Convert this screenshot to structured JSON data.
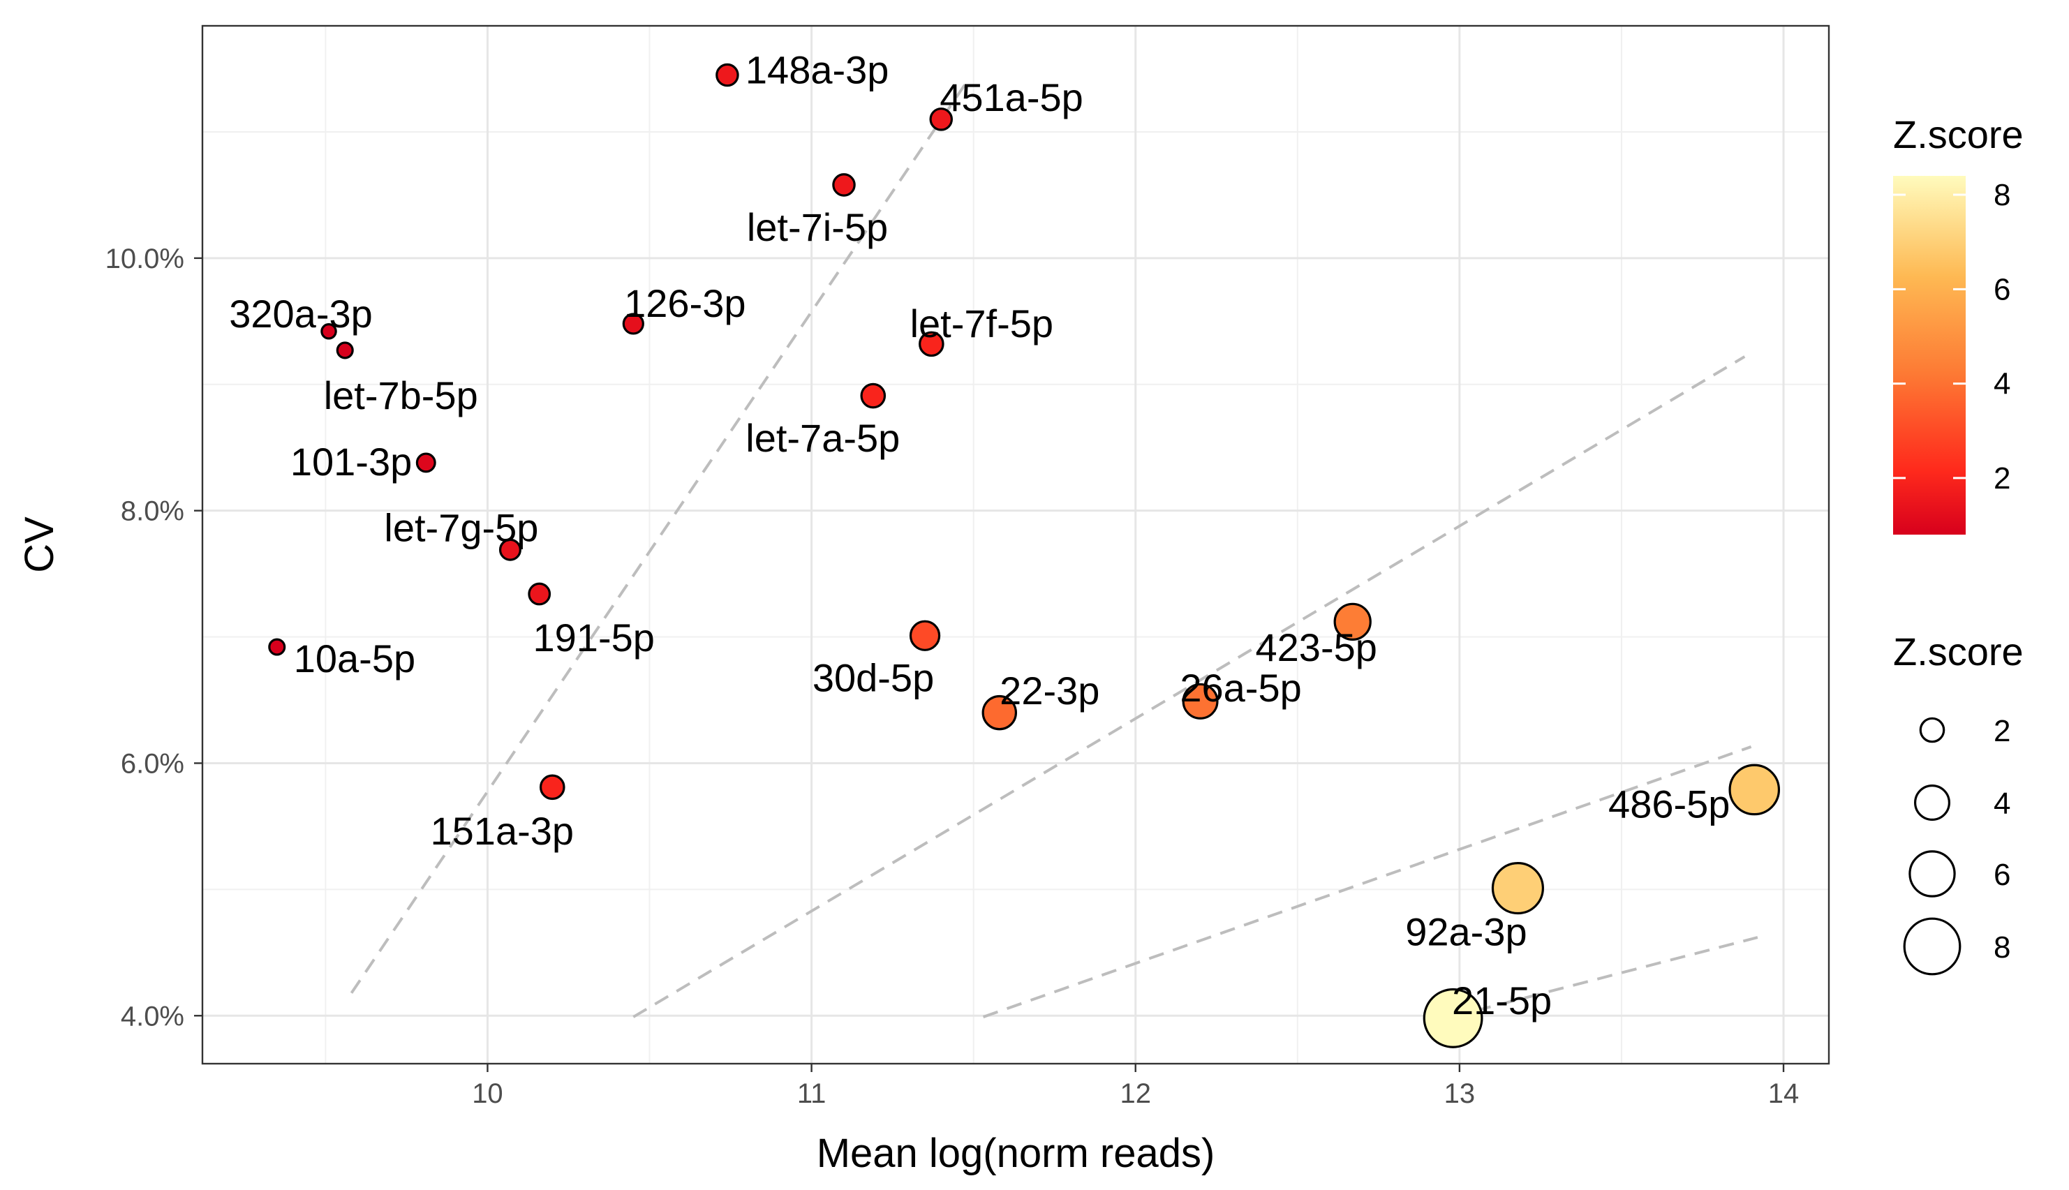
{
  "chart_data": {
    "type": "scatter",
    "title": "",
    "xlabel": "Mean log(norm reads)",
    "ylabel": "CV",
    "xlim": [
      9.12,
      14.14
    ],
    "ylim": [
      3.62,
      11.84
    ],
    "x_ticks": [
      10,
      11,
      12,
      13,
      14
    ],
    "x_tick_labels": [
      "10",
      "11",
      "12",
      "13",
      "14"
    ],
    "y_ticks": [
      4,
      6,
      8,
      10
    ],
    "y_tick_labels": [
      "4.0%",
      "6.0%",
      "8.0%",
      "10.0%"
    ],
    "grid": true,
    "points": [
      {
        "label": "148a-3p",
        "x": 10.74,
        "y": 11.45,
        "z": 1.6
      },
      {
        "label": "451a-5p",
        "x": 11.4,
        "y": 11.1,
        "z": 1.6
      },
      {
        "label": "let-7i-5p",
        "x": 11.1,
        "y": 10.58,
        "z": 1.6
      },
      {
        "label": "320a-3p",
        "x": 9.51,
        "y": 9.42,
        "z": 0.3
      },
      {
        "label": "let-7b-5p",
        "x": 9.56,
        "y": 9.27,
        "z": 0.5
      },
      {
        "label": "126-3p",
        "x": 10.45,
        "y": 9.48,
        "z": 1.3
      },
      {
        "label": "let-7f-5p",
        "x": 11.37,
        "y": 9.32,
        "z": 2.0
      },
      {
        "label": "let-7a-5p",
        "x": 11.19,
        "y": 8.91,
        "z": 2.0
      },
      {
        "label": "101-3p",
        "x": 9.81,
        "y": 8.38,
        "z": 1.0
      },
      {
        "label": "let-7g-5p",
        "x": 10.07,
        "y": 7.69,
        "z": 1.4
      },
      {
        "label": "191-5p",
        "x": 10.16,
        "y": 7.34,
        "z": 1.5
      },
      {
        "label": "10a-5p",
        "x": 9.35,
        "y": 6.92,
        "z": 0.5
      },
      {
        "label": "30d-5p",
        "x": 11.35,
        "y": 7.01,
        "z": 3.0
      },
      {
        "label": "22-3p",
        "x": 11.58,
        "y": 6.4,
        "z": 3.8
      },
      {
        "label": "26a-5p",
        "x": 12.2,
        "y": 6.49,
        "z": 4.0
      },
      {
        "label": "423-5p",
        "x": 12.67,
        "y": 7.12,
        "z": 4.3
      },
      {
        "label": "151a-3p",
        "x": 10.2,
        "y": 5.81,
        "z": 2.0
      },
      {
        "label": "486-5p",
        "x": 13.91,
        "y": 5.79,
        "z": 6.8
      },
      {
        "label": "92a-3p",
        "x": 13.18,
        "y": 5.01,
        "z": 7.0
      },
      {
        "label": "21-5p",
        "x": 12.98,
        "y": 3.98,
        "z": 8.4
      }
    ],
    "reference_lines": [
      {
        "x": [
          9.58,
          11.48
        ],
        "y": [
          4.18,
          11.4
        ]
      },
      {
        "x": [
          10.45,
          13.88
        ],
        "y": [
          3.99,
          9.22
        ]
      },
      {
        "x": [
          11.53,
          13.9
        ],
        "y": [
          3.99,
          6.13
        ]
      },
      {
        "x": [
          13.05,
          13.92
        ],
        "y": [
          4.04,
          4.62
        ]
      }
    ],
    "legend": {
      "color": {
        "title": "Z.score",
        "ticks": [
          2,
          4,
          6,
          8
        ],
        "range": [
          0.8,
          8.4
        ],
        "colors": [
          "#d7191c",
          "#ff3b1c",
          "#fd8d3c",
          "#fec05a",
          "#fff7b4"
        ]
      },
      "size": {
        "title": "Z.score",
        "ticks": [
          2,
          4,
          6,
          8
        ],
        "labels": [
          "2",
          "4",
          "6",
          "8"
        ]
      },
      "placement": "right"
    }
  }
}
